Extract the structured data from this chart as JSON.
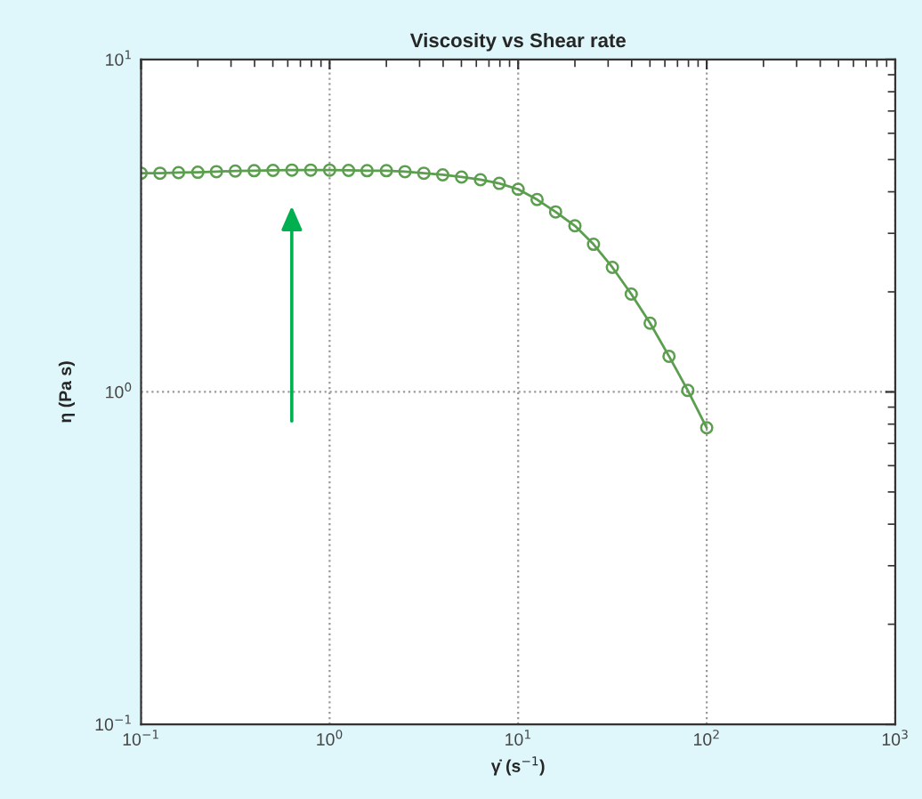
{
  "chart_data": {
    "type": "line",
    "title": "Viscosity vs Shear rate",
    "xlabel": "γ̇ (s$^{−1}$)",
    "ylabel": "η (Pa s)",
    "log": "xy",
    "grid": true,
    "marker": "circle",
    "line_style": "solid",
    "x": [
      0.1,
      0.126,
      0.158,
      0.2,
      0.251,
      0.316,
      0.398,
      0.501,
      0.631,
      0.794,
      1.0,
      1.26,
      1.58,
      2.0,
      2.51,
      3.16,
      3.98,
      5.01,
      6.31,
      7.94,
      10.0,
      12.6,
      15.8,
      20.0,
      25.1,
      31.6,
      39.8,
      50.1,
      63.1,
      79.4,
      100.0
    ],
    "series": [
      {
        "color": "#5a9e4e",
        "values": [
          4.55,
          4.55,
          4.57,
          4.58,
          4.6,
          4.62,
          4.63,
          4.64,
          4.65,
          4.65,
          4.65,
          4.64,
          4.63,
          4.63,
          4.6,
          4.55,
          4.5,
          4.43,
          4.35,
          4.24,
          4.07,
          3.79,
          3.48,
          3.16,
          2.78,
          2.37,
          1.97,
          1.61,
          1.28,
          1.01,
          0.78
        ]
      }
    ],
    "xlim": [
      0.1,
      1000
    ],
    "ylim": [
      0.1,
      10
    ],
    "xticks": [
      {
        "value": 0.1,
        "label": "10$^{−1}$"
      },
      {
        "value": 1,
        "label": "10$^{0}$"
      },
      {
        "value": 10,
        "label": "10$^{1}$"
      },
      {
        "value": 100,
        "label": "10$^{2}$"
      },
      {
        "value": 1000,
        "label": "10$^{3}$"
      }
    ],
    "yticks": [
      {
        "value": 0.1,
        "label": "10$^{−1}$"
      },
      {
        "value": 1,
        "label": "10$^{0}$"
      },
      {
        "value": 10,
        "label": "10$^{1}$"
      }
    ]
  }
}
